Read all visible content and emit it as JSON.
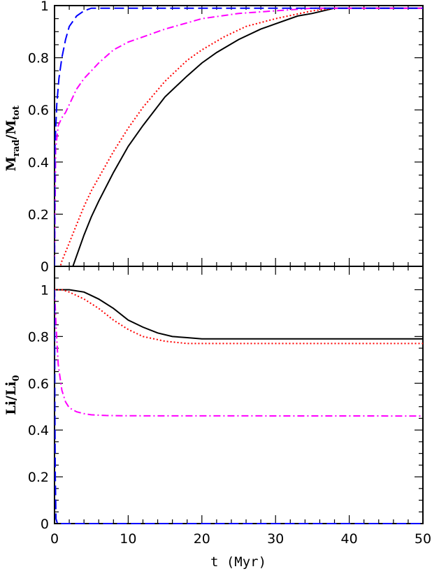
{
  "chart_data": [
    {
      "type": "line",
      "panel": "top",
      "ylabel": {
        "main": "M",
        "sub1": "rad",
        "sep": "/M",
        "sub2": "tot"
      },
      "xlim": [
        0,
        50
      ],
      "ylim": [
        0,
        1
      ],
      "xticks": [
        "0",
        "10",
        "20",
        "30",
        "40",
        "50"
      ],
      "yticks": [
        "0",
        "0.2",
        "0.4",
        "0.6",
        "0.8",
        "1"
      ],
      "series": [
        {
          "key": "solid",
          "color": "#000000",
          "dash": "none",
          "points": [
            [
              0,
              0
            ],
            [
              2.5,
              0
            ],
            [
              3,
              0.04
            ],
            [
              4,
              0.12
            ],
            [
              5,
              0.19
            ],
            [
              6,
              0.25
            ],
            [
              8,
              0.36
            ],
            [
              10,
              0.46
            ],
            [
              12,
              0.54
            ],
            [
              15,
              0.65
            ],
            [
              18,
              0.73
            ],
            [
              20,
              0.78
            ],
            [
              22,
              0.82
            ],
            [
              25,
              0.87
            ],
            [
              28,
              0.91
            ],
            [
              30,
              0.93
            ],
            [
              33,
              0.96
            ],
            [
              35,
              0.97
            ],
            [
              38,
              0.99
            ],
            [
              42,
              0.99
            ],
            [
              50,
              0.99
            ]
          ]
        },
        {
          "key": "dotted",
          "color": "#ff0000",
          "dash": "2,3",
          "points": [
            [
              0,
              0
            ],
            [
              0.8,
              0
            ],
            [
              1,
              0.02
            ],
            [
              2,
              0.09
            ],
            [
              3,
              0.16
            ],
            [
              4,
              0.23
            ],
            [
              5,
              0.29
            ],
            [
              6,
              0.34
            ],
            [
              8,
              0.44
            ],
            [
              10,
              0.53
            ],
            [
              12,
              0.61
            ],
            [
              15,
              0.71
            ],
            [
              18,
              0.79
            ],
            [
              20,
              0.83
            ],
            [
              23,
              0.88
            ],
            [
              26,
              0.92
            ],
            [
              30,
              0.95
            ],
            [
              35,
              0.98
            ],
            [
              38,
              0.99
            ],
            [
              50,
              0.99
            ]
          ]
        },
        {
          "key": "dashdot",
          "color": "#ff00ff",
          "dash": "10,4,2,4",
          "points": [
            [
              0,
              0
            ],
            [
              0.15,
              0.45
            ],
            [
              0.5,
              0.54
            ],
            [
              1,
              0.57
            ],
            [
              1.5,
              0.59
            ],
            [
              2,
              0.62
            ],
            [
              3,
              0.68
            ],
            [
              4,
              0.72
            ],
            [
              5,
              0.75
            ],
            [
              6,
              0.78
            ],
            [
              8,
              0.83
            ],
            [
              10,
              0.86
            ],
            [
              12,
              0.88
            ],
            [
              15,
              0.91
            ],
            [
              20,
              0.95
            ],
            [
              25,
              0.97
            ],
            [
              30,
              0.98
            ],
            [
              35,
              0.99
            ],
            [
              50,
              0.99
            ]
          ]
        },
        {
          "key": "dashed",
          "color": "#0000ff",
          "dash": "14,6",
          "points": [
            [
              0,
              0
            ],
            [
              0.05,
              0.45
            ],
            [
              0.3,
              0.62
            ],
            [
              0.6,
              0.72
            ],
            [
              1,
              0.8
            ],
            [
              1.5,
              0.87
            ],
            [
              2,
              0.92
            ],
            [
              3,
              0.96
            ],
            [
              4,
              0.98
            ],
            [
              5,
              0.99
            ],
            [
              7,
              0.99
            ],
            [
              50,
              0.99
            ]
          ]
        }
      ]
    },
    {
      "type": "line",
      "panel": "bottom",
      "ylabel": {
        "main": "Li",
        "sep": "/Li",
        "sub2": "0"
      },
      "xlabel": "t (Myr)",
      "xlim": [
        0,
        50
      ],
      "ylim": [
        0,
        1.1
      ],
      "xticks": [
        "0",
        "10",
        "20",
        "30",
        "40",
        "50"
      ],
      "yticks": [
        "0",
        "0.2",
        "0.4",
        "0.6",
        "0.8",
        "1"
      ],
      "series": [
        {
          "key": "solid",
          "color": "#000000",
          "dash": "none",
          "points": [
            [
              0,
              1
            ],
            [
              2,
              1
            ],
            [
              4,
              0.99
            ],
            [
              6,
              0.96
            ],
            [
              8,
              0.92
            ],
            [
              10,
              0.87
            ],
            [
              12,
              0.84
            ],
            [
              14,
              0.815
            ],
            [
              16,
              0.8
            ],
            [
              18,
              0.795
            ],
            [
              20,
              0.79
            ],
            [
              25,
              0.79
            ],
            [
              50,
              0.79
            ]
          ]
        },
        {
          "key": "dotted",
          "color": "#ff0000",
          "dash": "2,3",
          "points": [
            [
              0,
              1
            ],
            [
              1,
              1
            ],
            [
              2,
              0.99
            ],
            [
              4,
              0.96
            ],
            [
              6,
              0.92
            ],
            [
              8,
              0.87
            ],
            [
              10,
              0.83
            ],
            [
              12,
              0.8
            ],
            [
              15,
              0.78
            ],
            [
              18,
              0.77
            ],
            [
              20,
              0.77
            ],
            [
              50,
              0.77
            ]
          ]
        },
        {
          "key": "dashdot",
          "color": "#ff00ff",
          "dash": "10,4,2,4",
          "points": [
            [
              0,
              1
            ],
            [
              0.2,
              0.85
            ],
            [
              0.5,
              0.68
            ],
            [
              1,
              0.57
            ],
            [
              1.5,
              0.52
            ],
            [
              2,
              0.495
            ],
            [
              3,
              0.478
            ],
            [
              4,
              0.47
            ],
            [
              5,
              0.465
            ],
            [
              7,
              0.462
            ],
            [
              10,
              0.461
            ],
            [
              50,
              0.46
            ]
          ]
        },
        {
          "key": "dashed",
          "color": "#0000ff",
          "dash": "14,6",
          "points": [
            [
              0,
              1
            ],
            [
              0.05,
              0.5
            ],
            [
              0.1,
              0.2
            ],
            [
              0.2,
              0.02
            ],
            [
              0.4,
              0
            ],
            [
              50,
              0
            ]
          ]
        }
      ]
    }
  ]
}
